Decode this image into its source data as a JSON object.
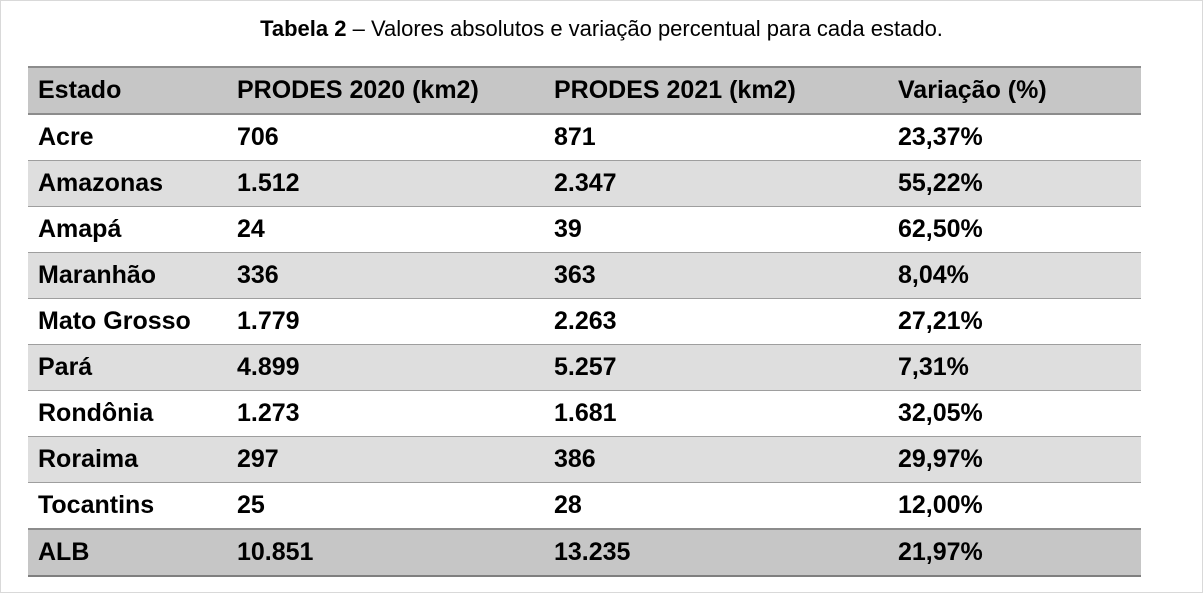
{
  "caption": {
    "label": "Tabela 2",
    "text": " – Valores absolutos e variação percentual para cada estado."
  },
  "table": {
    "headers": [
      "Estado",
      "PRODES 2020 (km2)",
      "PRODES 2021 (km2)",
      "Variação (%)"
    ],
    "rows": [
      [
        "Acre",
        "706",
        "871",
        "23,37%"
      ],
      [
        "Amazonas",
        "1.512",
        "2.347",
        "55,22%"
      ],
      [
        "Amapá",
        "24",
        "39",
        "62,50%"
      ],
      [
        "Maranhão",
        "336",
        "363",
        "8,04%"
      ],
      [
        "Mato Grosso",
        "1.779",
        "2.263",
        "27,21%"
      ],
      [
        "Pará",
        "4.899",
        "5.257",
        "7,31%"
      ],
      [
        "Rondônia",
        "1.273",
        "1.681",
        "32,05%"
      ],
      [
        "Roraima",
        "297",
        "386",
        "29,97%"
      ],
      [
        "Tocantins",
        "25",
        "28",
        "12,00%"
      ]
    ],
    "total": [
      "ALB",
      "10.851",
      "13.235",
      "21,97%"
    ]
  }
}
